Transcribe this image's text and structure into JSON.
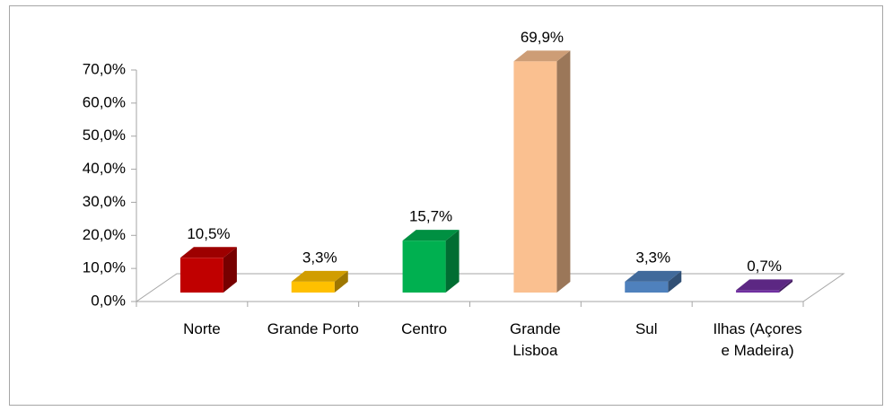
{
  "chart_data": {
    "type": "bar3d",
    "categories": [
      "Norte",
      "Grande Porto",
      "Centro",
      "Grande Lisboa",
      "Sul",
      "Ilhas (Açores e Madeira)"
    ],
    "values": [
      10.5,
      3.3,
      15.7,
      69.9,
      3.3,
      0.7
    ],
    "value_labels": [
      "10,5%",
      "3,3%",
      "15,7%",
      "69,9%",
      "3,3%",
      "0,7%"
    ],
    "colors": [
      "#c00000",
      "#ffc000",
      "#00b050",
      "#fac090",
      "#4f81bd",
      "#7030a0"
    ],
    "ylim": [
      0,
      70
    ],
    "yticks": [
      {
        "value": 0,
        "label": "0,0%"
      },
      {
        "value": 10,
        "label": "10,0%"
      },
      {
        "value": 20,
        "label": "20,0%"
      },
      {
        "value": 30,
        "label": "30,0%"
      },
      {
        "value": 40,
        "label": "40,0%"
      },
      {
        "value": 50,
        "label": "50,0%"
      },
      {
        "value": 60,
        "label": "60,0%"
      },
      {
        "value": 70,
        "label": "70,0%"
      }
    ],
    "grid": false
  }
}
